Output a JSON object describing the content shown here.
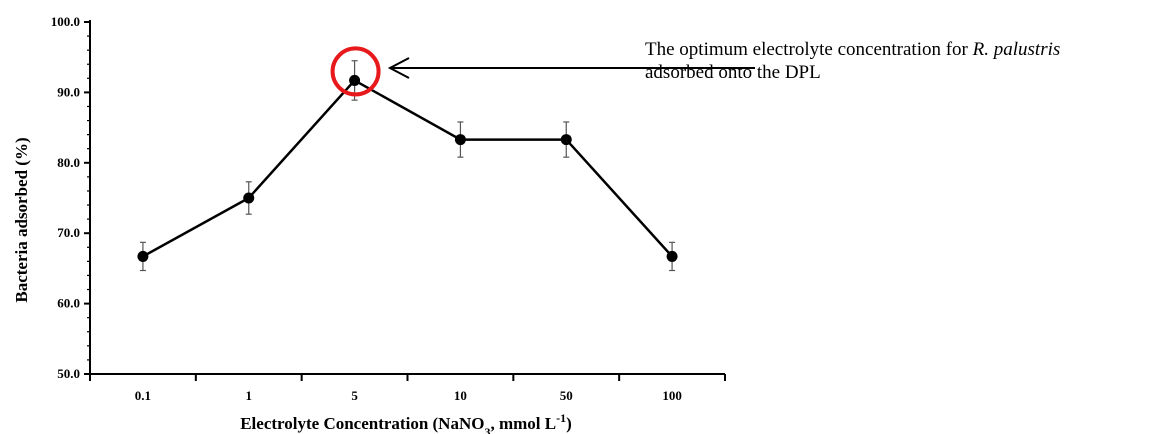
{
  "chart_data": {
    "type": "line",
    "categories": [
      "0.1",
      "1",
      "5",
      "10",
      "50",
      "100"
    ],
    "series": [
      {
        "values": [
          66.7,
          75.0,
          91.7,
          83.3,
          83.3,
          66.7
        ],
        "errors": [
          2.0,
          2.3,
          2.8,
          2.5,
          2.5,
          2.0
        ]
      }
    ],
    "ylim": [
      50,
      100
    ],
    "yticks": [
      "50.0",
      "60.0",
      "70.0",
      "80.0",
      "90.0",
      "100.0"
    ],
    "xlabel_parts": [
      "Electrolyte Concentration (NaNO",
      "3",
      ", mmol L",
      "-1",
      ")"
    ],
    "ylabel": "Bacteria adsorbed (%)",
    "highlight": {
      "category": "5",
      "color": "#e8191b"
    },
    "annotation": {
      "text_before": "The optimum electrolyte concentration for ",
      "text_italic": "R. palustris",
      "line2": "adsorbed onto the DPL"
    },
    "grid": false,
    "line_color": "#000000"
  }
}
